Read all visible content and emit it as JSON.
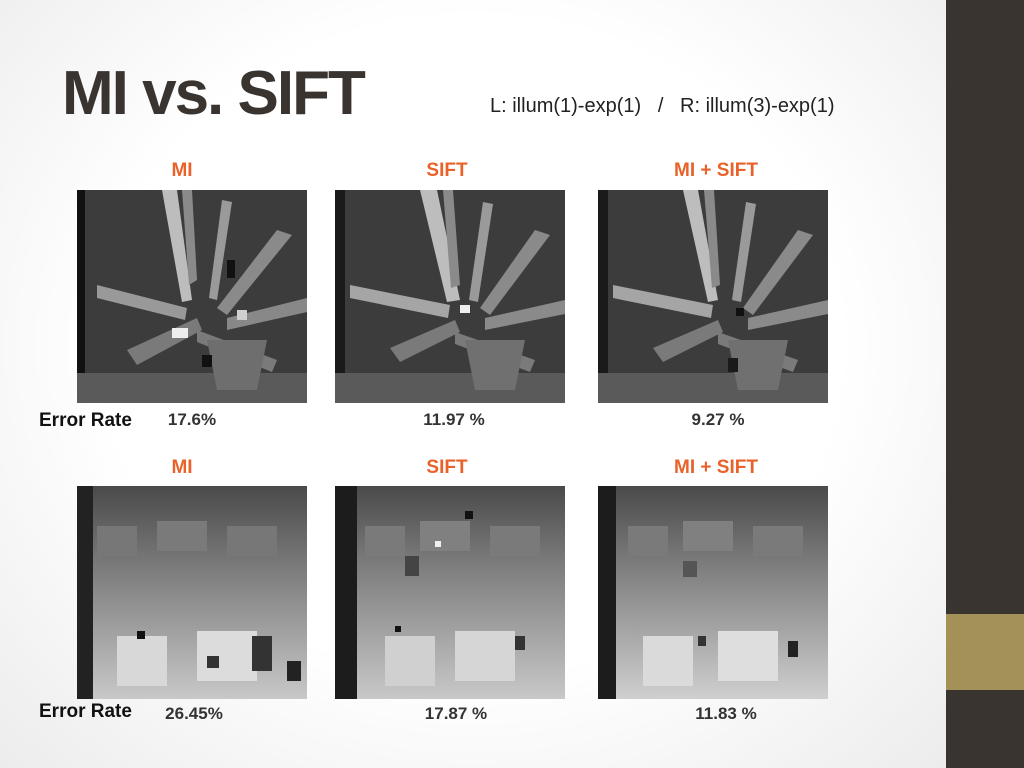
{
  "slide": {
    "title": "MI vs. SIFT",
    "subtitle": "L: illum(1)-exp(1)   /   R: illum(3)-exp(1)"
  },
  "rows": [
    {
      "labels": [
        "MI",
        "SIFT",
        "MI + SIFT"
      ],
      "error_label": "Error Rate",
      "errors": [
        "17.6%",
        "11.97 %",
        "9.27 %"
      ]
    },
    {
      "labels": [
        "MI",
        "SIFT",
        "MI + SIFT"
      ],
      "error_label": "Error Rate",
      "errors": [
        "26.45%",
        "17.87 %",
        "11.83 %"
      ]
    }
  ],
  "colors": {
    "accent": "#e8622a",
    "title": "#3a3430",
    "sidebar": "#3a3430",
    "sidebar_accent": "#a39158"
  }
}
